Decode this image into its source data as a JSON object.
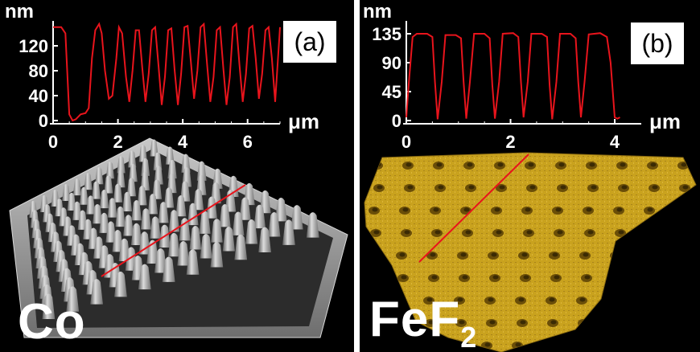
{
  "figure": {
    "colors": {
      "background": "#000000",
      "trace": "#e8141c",
      "axis": "#ffffff",
      "co_surface": "#9a9a9a",
      "fef2_surface": "#c8a01e"
    },
    "panels": [
      {
        "label": "(a)",
        "material_main": "Co",
        "material_sub": "",
        "y_unit": "nm",
        "x_unit": "μm",
        "chart_data": {
          "type": "line",
          "title": "",
          "xlabel": "μm",
          "ylabel": "nm",
          "xlim": [
            0,
            7
          ],
          "ylim": [
            0,
            160
          ],
          "xticks": [
            "0",
            "2",
            "4",
            "6"
          ],
          "yticks": [
            "0",
            "40",
            "80",
            "120"
          ],
          "series": [
            {
              "x": [
                0.0,
                0.25,
                0.38,
                0.5,
                0.6,
                0.7,
                0.85,
                1.0,
                1.1,
                1.2,
                1.3,
                1.42,
                1.5,
                1.6,
                1.72,
                1.83,
                1.95,
                2.03,
                2.13,
                2.25,
                2.35,
                2.45,
                2.55,
                2.65,
                2.75,
                2.85,
                2.95,
                3.05,
                3.15,
                3.25,
                3.35,
                3.45,
                3.55,
                3.65,
                3.75,
                3.85,
                3.95,
                4.05,
                4.15,
                4.25,
                4.35,
                4.45,
                4.55,
                4.65,
                4.75,
                4.85,
                4.95,
                5.05,
                5.15,
                5.25,
                5.35,
                5.45,
                5.55,
                5.65,
                5.75,
                5.85,
                5.95,
                6.05,
                6.15,
                6.25,
                6.35,
                6.45,
                6.55,
                6.65,
                6.75,
                6.85,
                7.0
              ],
              "y": [
                150,
                150,
                140,
                10,
                0,
                2,
                10,
                12,
                20,
                100,
                145,
                155,
                140,
                80,
                35,
                40,
                100,
                150,
                140,
                70,
                30,
                80,
                145,
                145,
                85,
                30,
                75,
                145,
                150,
                90,
                25,
                70,
                145,
                148,
                80,
                25,
                75,
                150,
                152,
                95,
                35,
                80,
                150,
                155,
                90,
                30,
                70,
                145,
                150,
                85,
                25,
                70,
                150,
                155,
                90,
                30,
                75,
                148,
                152,
                100,
                35,
                75,
                145,
                150,
                100,
                30,
                150
              ]
            }
          ]
        }
      },
      {
        "label": "(b)",
        "material_main": "FeF",
        "material_sub": "2",
        "y_unit": "nm",
        "x_unit": "μm",
        "chart_data": {
          "type": "line",
          "title": "",
          "xlabel": "μm",
          "ylabel": "nm",
          "xlim": [
            0,
            4.2
          ],
          "ylim": [
            0,
            155
          ],
          "xticks": [
            "0",
            "2",
            "4"
          ],
          "yticks": [
            "0",
            "45",
            "90",
            "135"
          ],
          "series": [
            {
              "x": [
                0.0,
                0.05,
                0.12,
                0.2,
                0.4,
                0.5,
                0.55,
                0.6,
                0.68,
                0.75,
                0.95,
                1.05,
                1.1,
                1.15,
                1.22,
                1.3,
                1.5,
                1.6,
                1.65,
                1.7,
                1.78,
                1.85,
                2.05,
                2.15,
                2.2,
                2.25,
                2.33,
                2.4,
                2.6,
                2.7,
                2.75,
                2.8,
                2.88,
                2.95,
                3.15,
                3.25,
                3.3,
                3.35,
                3.42,
                3.5,
                3.72,
                3.85,
                3.92,
                4.0,
                4.05,
                4.1
              ],
              "y": [
                5,
                60,
                130,
                135,
                135,
                130,
                60,
                2,
                60,
                133,
                133,
                128,
                60,
                3,
                60,
                135,
                135,
                128,
                55,
                3,
                60,
                135,
                136,
                130,
                60,
                5,
                60,
                135,
                135,
                130,
                55,
                2,
                60,
                135,
                135,
                128,
                60,
                5,
                60,
                134,
                136,
                130,
                90,
                5,
                3,
                5
              ]
            }
          ]
        }
      }
    ]
  }
}
